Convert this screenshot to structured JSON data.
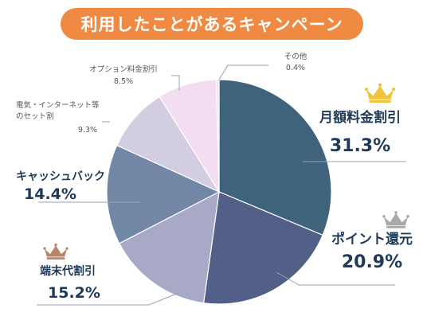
{
  "chart_data": {
    "type": "pie",
    "title": "利用したことがあるキャンペーン",
    "slices": [
      {
        "label": "月額料金割引",
        "pct_text": "31.3%",
        "value": 31.3,
        "color": "#3f627d",
        "crown": "gold"
      },
      {
        "label": "ポイント還元",
        "pct_text": "20.9%",
        "value": 20.9,
        "color": "#525f86",
        "crown": "silver"
      },
      {
        "label": "端末代割引",
        "pct_text": "15.2%",
        "value": 15.2,
        "color": "#a7a9c6",
        "crown": "bronze"
      },
      {
        "label": "キャッシュバック",
        "pct_text": "14.4%",
        "value": 14.4,
        "color": "#7287a5",
        "crown": ""
      },
      {
        "label": "電気・インターネット等のセット割",
        "pct_text": "9.3%",
        "value": 9.3,
        "color": "#d2cde0",
        "crown": ""
      },
      {
        "label": "オプション料金割引",
        "pct_text": "8.5%",
        "value": 8.5,
        "color": "#f3def1",
        "crown": ""
      },
      {
        "label": "その他",
        "pct_text": "0.4%",
        "value": 0.4,
        "color": "#ede3ec",
        "crown": ""
      }
    ]
  },
  "colors": {
    "title_bg": "#f08a42",
    "title_text": "#ffffff",
    "label_text": "#1e3a58",
    "small_text": "#555555",
    "leader_line": "#9aa0b4",
    "gold": "#f2c23a",
    "silver": "#a9a9a9",
    "bronze": "#b9856a"
  }
}
